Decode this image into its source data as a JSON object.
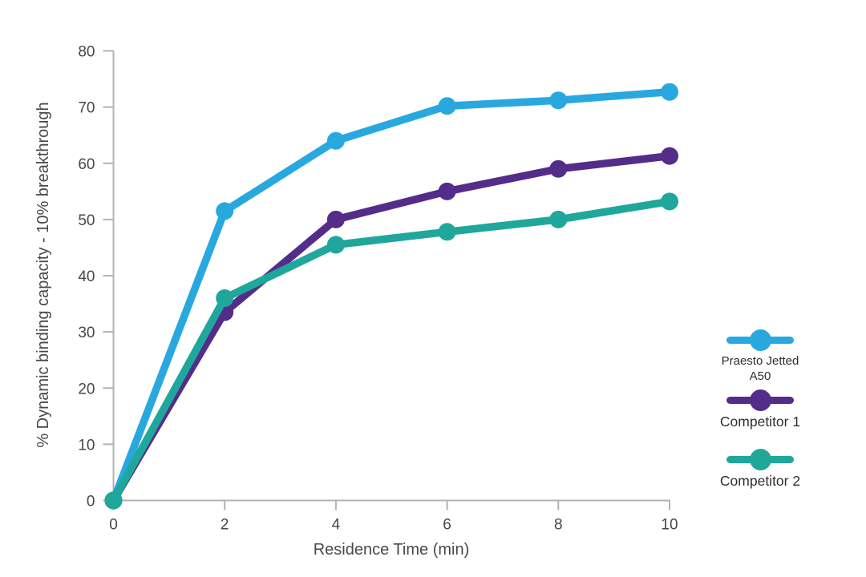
{
  "page": {
    "background": "#ffffff"
  },
  "chart_data": {
    "type": "line",
    "title": "",
    "xlabel": "Residence Time (min)",
    "ylabel": "% Dynamic binding capacity - 10% breakthrough",
    "x": [
      0,
      2,
      4,
      6,
      8,
      10
    ],
    "xlim": [
      0,
      10
    ],
    "ylim": [
      0,
      80
    ],
    "x_ticks": [
      0,
      2,
      4,
      6,
      8,
      10
    ],
    "y_ticks": [
      0,
      10,
      20,
      30,
      40,
      50,
      60,
      70,
      80
    ],
    "grid": false,
    "legend_position": "right",
    "axis_color": "#b3b3b6",
    "tick_label_color": "#4a4a4c",
    "series": [
      {
        "name": "Praesto Jetted A50",
        "color": "#29a8e0",
        "values": [
          0,
          51.5,
          64,
          70.2,
          71.2,
          72.7
        ]
      },
      {
        "name": "Competitor 1",
        "color": "#542c8a",
        "values": [
          0,
          33.5,
          50,
          55,
          59,
          61.3
        ]
      },
      {
        "name": "Competitor 2",
        "color": "#20a79b",
        "values": [
          0,
          36,
          45.5,
          47.8,
          50,
          53.2
        ]
      }
    ]
  }
}
